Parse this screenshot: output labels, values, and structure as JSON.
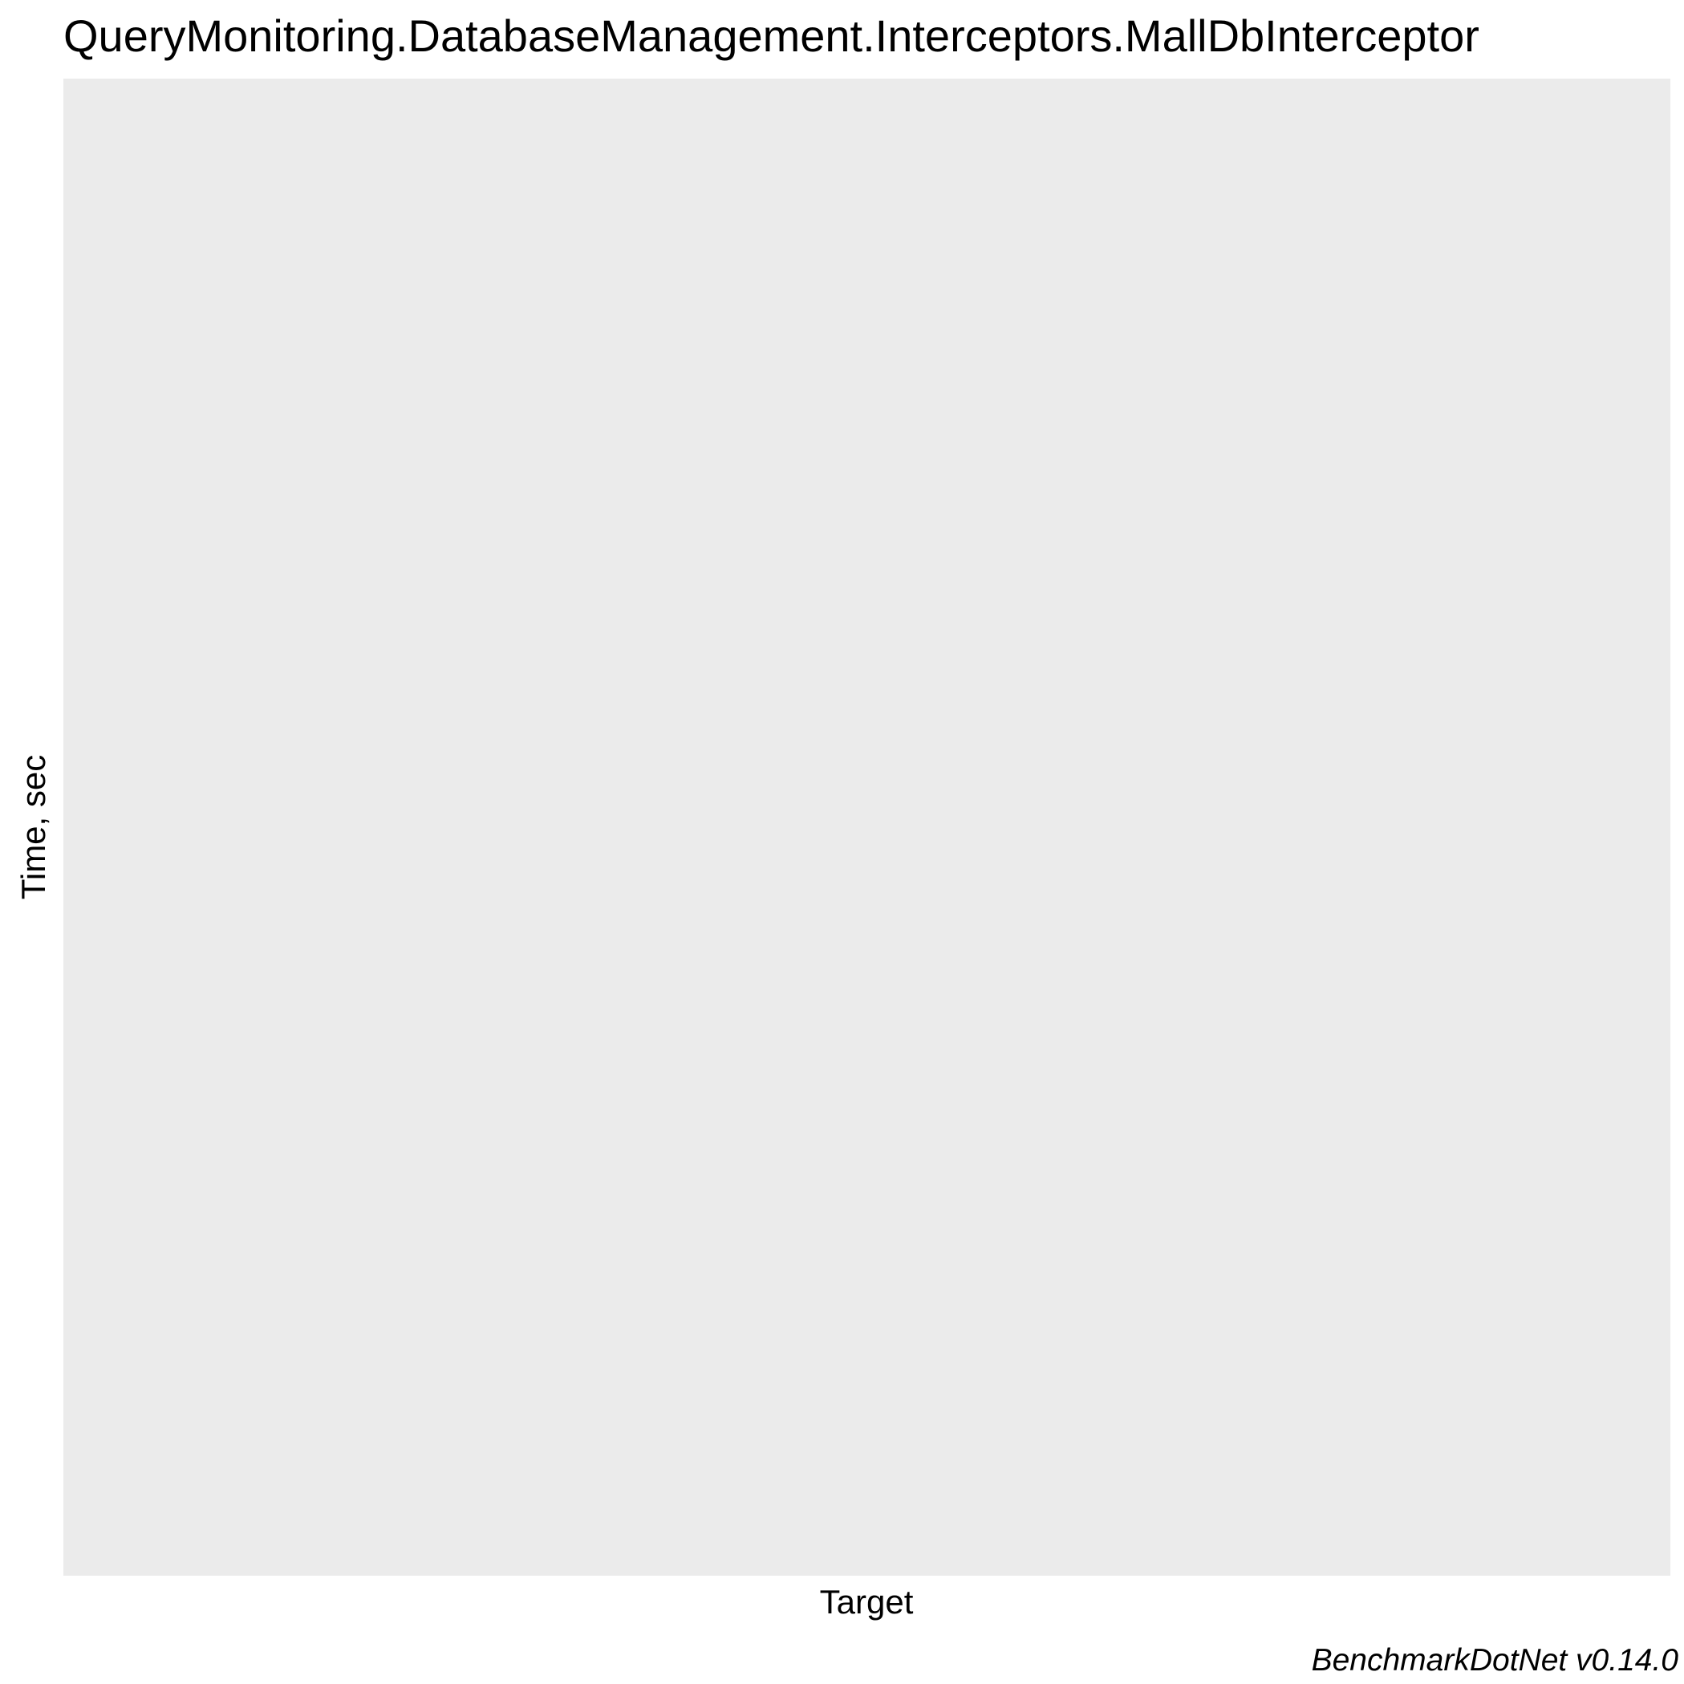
{
  "chart_data": {
    "type": "bar",
    "title": "QueryMonitoring.DatabaseManagement.Interceptors.MallDbInterceptor",
    "xlabel": "Target",
    "ylabel": "Time, sec",
    "categories": [],
    "series": [],
    "grid": false,
    "legend": "none",
    "panel_color": "#ebebeb",
    "caption": "BenchmarkDotNet v0.14.0"
  }
}
